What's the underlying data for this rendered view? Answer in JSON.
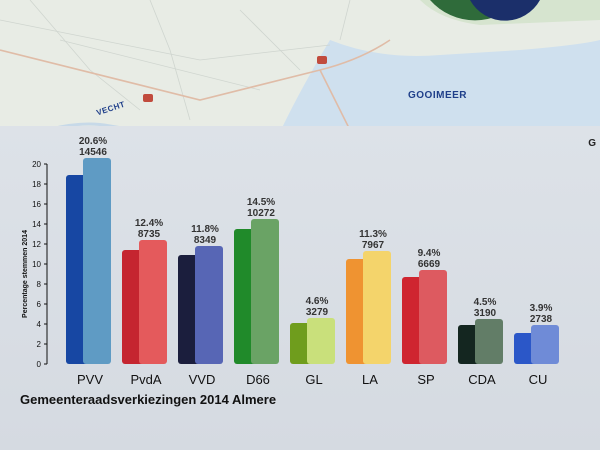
{
  "map": {
    "labels": {
      "lake": "GOOIMEER",
      "river": "VECHT"
    },
    "colors": {
      "water": "#cfe0ee",
      "land": "#e8ece5",
      "road": "#e0bca7"
    }
  },
  "corner_text": "G",
  "chart_data": {
    "type": "bar",
    "title": "Gemeenteraadsverkiezingen 2014 Almere",
    "ylabel": "Percentage stemmen 2014",
    "ylim": [
      0,
      20
    ],
    "yticks": [
      0,
      2,
      4,
      6,
      8,
      10,
      12,
      14,
      16,
      18,
      20
    ],
    "categories": [
      "PVV",
      "PvdA",
      "VVD",
      "D66",
      "GL",
      "LA",
      "SP",
      "CDA",
      "CU"
    ],
    "series": [
      {
        "values": [
          18.9,
          11.4,
          10.9,
          13.5,
          4.1,
          10.5,
          8.7,
          3.9,
          3.1
        ]
      },
      {
        "values": [
          20.6,
          12.4,
          11.8,
          14.5,
          4.6,
          11.3,
          9.4,
          4.5,
          3.9
        ]
      }
    ],
    "data_labels": [
      {
        "percent": "20.6%",
        "votes": "14546"
      },
      {
        "percent": "12.4%",
        "votes": "8735"
      },
      {
        "percent": "11.8%",
        "votes": "8349"
      },
      {
        "percent": "14.5%",
        "votes": "10272"
      },
      {
        "percent": "4.6%",
        "votes": "3279"
      },
      {
        "percent": "11.3%",
        "votes": "7967"
      },
      {
        "percent": "9.4%",
        "votes": "6669"
      },
      {
        "percent": "4.5%",
        "votes": "3190"
      },
      {
        "percent": "3.9%",
        "votes": "2738"
      }
    ],
    "colors": {
      "dark": [
        "#1747a3",
        "#c52530",
        "#1b1e3d",
        "#208a2a",
        "#6f9d1d",
        "#ef9331",
        "#cf2530",
        "#142620",
        "#2b57c8"
      ],
      "light": [
        "#5f9bc4",
        "#e45a5c",
        "#5766b5",
        "#6aa365",
        "#c9e07b",
        "#f4d46b",
        "#dd5a60",
        "#627d67",
        "#6f8bd7"
      ]
    }
  }
}
